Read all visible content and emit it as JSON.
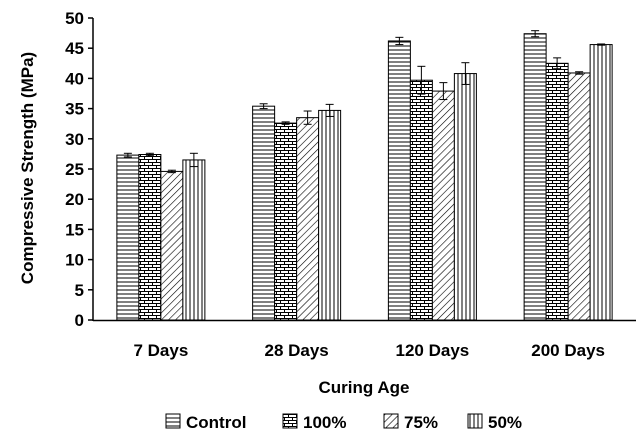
{
  "chart_data": {
    "type": "bar",
    "title": "",
    "xlabel": "Curing Age",
    "ylabel": "Compressive Strength (MPa)",
    "ylim": [
      0,
      50
    ],
    "yticks": [
      "0",
      "5",
      "10",
      "15",
      "20",
      "25",
      "30",
      "35",
      "40",
      "45",
      "50"
    ],
    "categories": [
      "7 Days",
      "28 Days",
      "120 Days",
      "200 Days"
    ],
    "series": [
      {
        "name": "Control",
        "pattern": "horizontal-lines",
        "values": [
          27.3,
          35.4,
          46.2,
          47.4
        ],
        "errors": [
          0.3,
          0.4,
          0.6,
          0.5
        ]
      },
      {
        "name": "100%",
        "pattern": "brick",
        "values": [
          27.4,
          32.6,
          39.7,
          42.5
        ],
        "errors": [
          0.2,
          0.2,
          2.3,
          0.9
        ]
      },
      {
        "name": "75%",
        "pattern": "diagonal-lines",
        "values": [
          24.6,
          33.5,
          37.9,
          40.9
        ],
        "errors": [
          0.2,
          1.1,
          1.4,
          0.2
        ]
      },
      {
        "name": "50%",
        "pattern": "vertical-lines",
        "values": [
          26.5,
          34.7,
          40.8,
          45.6
        ],
        "errors": [
          1.1,
          1.0,
          1.8,
          0.1
        ]
      }
    ],
    "legend_position": "bottom",
    "grid": false,
    "colors": {
      "bar_fill": "#ffffff",
      "stroke": "#000000"
    }
  }
}
